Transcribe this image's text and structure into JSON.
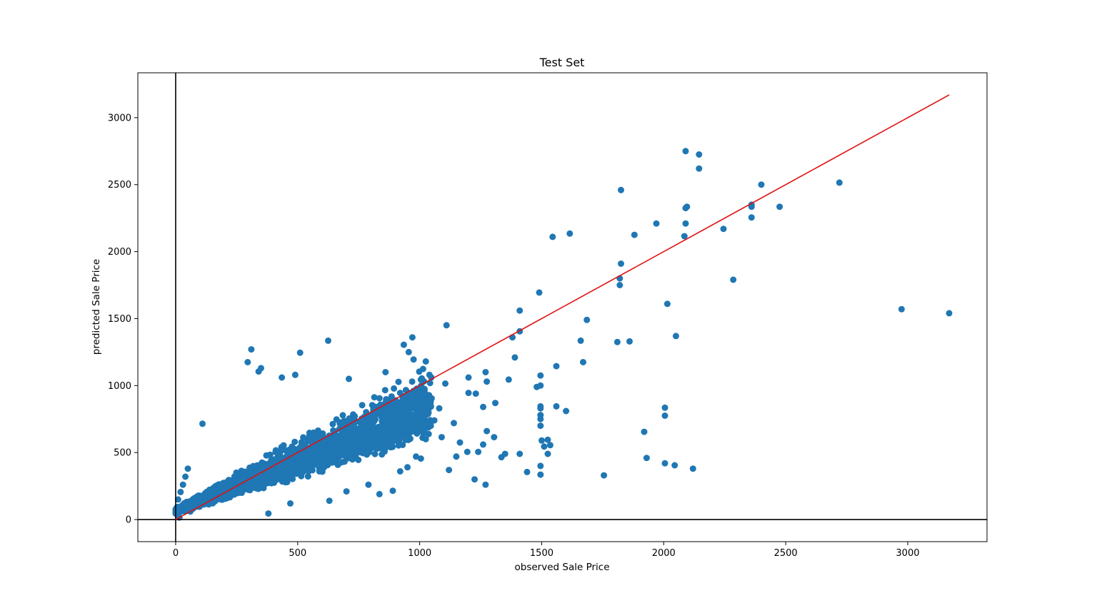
{
  "chart_data": {
    "type": "scatter",
    "title": "Test Set",
    "xlabel": "observed Sale Price",
    "ylabel": "predicted Sale Price",
    "xlim": [
      -155,
      3325
    ],
    "ylim": [
      -165,
      3335
    ],
    "xticks": [
      0,
      500,
      1000,
      1500,
      2000,
      2500,
      3000
    ],
    "yticks": [
      0,
      500,
      1000,
      1500,
      2000,
      2500,
      3000
    ],
    "grid": false,
    "reference_lines": {
      "horizontal_at": 0,
      "vertical_at": 0,
      "identity_line": [
        [
          0,
          0
        ],
        [
          3170,
          3170
        ]
      ]
    },
    "colors": {
      "points": "#1f77b4",
      "identity_line": "#e01010",
      "axes": "#000000"
    },
    "dense_cluster_band": {
      "x_range": [
        0,
        1050
      ],
      "slope_low": 0.35,
      "slope_high": 1.35,
      "approx_points": 2600
    },
    "points": [
      [
        2090,
        2750
      ],
      [
        2145,
        2725
      ],
      [
        2145,
        2620
      ],
      [
        1825,
        2460
      ],
      [
        2400,
        2500
      ],
      [
        2720,
        2515
      ],
      [
        2095,
        2335
      ],
      [
        2090,
        2325
      ],
      [
        2360,
        2350
      ],
      [
        2360,
        2335
      ],
      [
        2475,
        2335
      ],
      [
        2360,
        2255
      ],
      [
        1970,
        2210
      ],
      [
        2090,
        2210
      ],
      [
        2245,
        2170
      ],
      [
        1545,
        2110
      ],
      [
        1615,
        2135
      ],
      [
        1880,
        2125
      ],
      [
        2085,
        2115
      ],
      [
        1825,
        1910
      ],
      [
        1820,
        1800
      ],
      [
        1820,
        1750
      ],
      [
        2285,
        1790
      ],
      [
        1490,
        1695
      ],
      [
        2015,
        1610
      ],
      [
        1410,
        1560
      ],
      [
        2975,
        1570
      ],
      [
        3170,
        1540
      ],
      [
        1685,
        1490
      ],
      [
        1110,
        1450
      ],
      [
        1410,
        1405
      ],
      [
        2050,
        1370
      ],
      [
        970,
        1360
      ],
      [
        1380,
        1360
      ],
      [
        1660,
        1335
      ],
      [
        1810,
        1325
      ],
      [
        1860,
        1330
      ],
      [
        935,
        1305
      ],
      [
        625,
        1335
      ],
      [
        310,
        1270
      ],
      [
        510,
        1245
      ],
      [
        955,
        1250
      ],
      [
        1390,
        1210
      ],
      [
        975,
        1195
      ],
      [
        1025,
        1180
      ],
      [
        1670,
        1175
      ],
      [
        1560,
        1145
      ],
      [
        295,
        1175
      ],
      [
        1365,
        1045
      ],
      [
        1495,
        1075
      ],
      [
        1495,
        1000
      ],
      [
        1480,
        990
      ],
      [
        1200,
        1060
      ],
      [
        1270,
        1100
      ],
      [
        1105,
        1015
      ],
      [
        1275,
        1030
      ],
      [
        2005,
        835
      ],
      [
        2005,
        775
      ],
      [
        1600,
        810
      ],
      [
        1560,
        845
      ],
      [
        1495,
        845
      ],
      [
        1495,
        830
      ],
      [
        1495,
        780
      ],
      [
        1495,
        750
      ],
      [
        1495,
        700
      ],
      [
        1920,
        655
      ],
      [
        1525,
        595
      ],
      [
        1535,
        555
      ],
      [
        1500,
        590
      ],
      [
        1510,
        545
      ],
      [
        1525,
        490
      ],
      [
        1410,
        490
      ],
      [
        1440,
        355
      ],
      [
        1495,
        400
      ],
      [
        1495,
        335
      ],
      [
        1755,
        330
      ],
      [
        1930,
        460
      ],
      [
        2005,
        420
      ],
      [
        2045,
        405
      ],
      [
        2120,
        380
      ],
      [
        1225,
        300
      ],
      [
        1270,
        260
      ],
      [
        1335,
        465
      ],
      [
        1350,
        490
      ],
      [
        1305,
        615
      ],
      [
        1275,
        660
      ],
      [
        1260,
        560
      ],
      [
        1240,
        505
      ],
      [
        1195,
        505
      ],
      [
        1165,
        575
      ],
      [
        1150,
        470
      ],
      [
        1120,
        370
      ],
      [
        1090,
        615
      ],
      [
        1080,
        830
      ],
      [
        1060,
        740
      ],
      [
        1260,
        840
      ],
      [
        1310,
        870
      ],
      [
        1230,
        940
      ],
      [
        1200,
        945
      ],
      [
        1140,
        720
      ],
      [
        860,
        1100
      ],
      [
        710,
        1050
      ],
      [
        490,
        1080
      ],
      [
        435,
        1060
      ],
      [
        350,
        1130
      ],
      [
        340,
        1105
      ],
      [
        110,
        715
      ],
      [
        50,
        380
      ],
      [
        40,
        320
      ],
      [
        30,
        260
      ],
      [
        20,
        205
      ],
      [
        10,
        150
      ],
      [
        5,
        90
      ],
      [
        8,
        40
      ],
      [
        15,
        15
      ],
      [
        60,
        60
      ],
      [
        380,
        45
      ],
      [
        470,
        120
      ],
      [
        630,
        140
      ],
      [
        700,
        210
      ],
      [
        835,
        190
      ],
      [
        890,
        215
      ],
      [
        790,
        260
      ],
      [
        950,
        390
      ],
      [
        920,
        360
      ],
      [
        985,
        470
      ],
      [
        1005,
        455
      ],
      [
        1025,
        600
      ],
      [
        1000,
        800
      ],
      [
        1045,
        850
      ],
      [
        1040,
        1080
      ],
      [
        975,
        960
      ],
      [
        920,
        945
      ],
      [
        890,
        870
      ],
      [
        835,
        905
      ]
    ]
  }
}
